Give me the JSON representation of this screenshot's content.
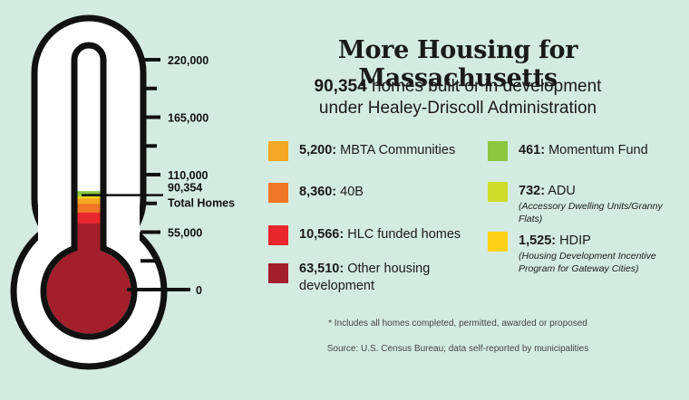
{
  "title": "More Housing for Massachusetts",
  "subtitle": {
    "value": "90,354",
    "line1_rest": "homes built or in development",
    "line2": "under Healey-Driscoll Administration"
  },
  "chart_data": {
    "type": "bar",
    "orientation": "vertical-thermometer",
    "ylim": [
      0,
      220000
    ],
    "tick_labels": [
      "220,000",
      "165,000",
      "110,000",
      "55,000",
      "0"
    ],
    "tick_values": [
      220000,
      165000,
      110000,
      55000,
      0
    ],
    "total": {
      "value": 90354,
      "label_value": "90,354",
      "label_text": "Total Homes"
    },
    "stack_order_bottom_to_top": [
      "Other housing development",
      "HLC funded homes",
      "40B",
      "MBTA Communities",
      "HDIP",
      "ADU",
      "Momentum Fund"
    ],
    "series": [
      {
        "value": 5200,
        "value_label": "5,200:",
        "name": "MBTA Communities",
        "color": "#f5a623"
      },
      {
        "value": 8360,
        "value_label": "8,360:",
        "name": "40B",
        "color": "#ef7625"
      },
      {
        "value": 10566,
        "value_label": "10,566:",
        "name": "HLC funded homes",
        "color": "#e8262b"
      },
      {
        "value": 63510,
        "value_label": "63,510:",
        "name": "Other housing development",
        "color": "#a31f2b"
      },
      {
        "value": 461,
        "value_label": "461:",
        "name": "Momentum Fund",
        "color": "#8cc63f"
      },
      {
        "value": 732,
        "value_label": "732:",
        "name": "ADU",
        "note": "(Accessory Dwelling Units/Granny Flats)",
        "color": "#cddc29"
      },
      {
        "value": 1525,
        "value_label": "1,525:",
        "name": "HDIP",
        "note": "(Housing Development Incentive Program for Gateway Cities)",
        "color": "#fdd116"
      }
    ]
  },
  "footnotes": {
    "note": "* Includes all homes completed, permitted, awarded or proposed",
    "source": "Source: U.S. Census Bureau; data self-reported by municipalities"
  }
}
